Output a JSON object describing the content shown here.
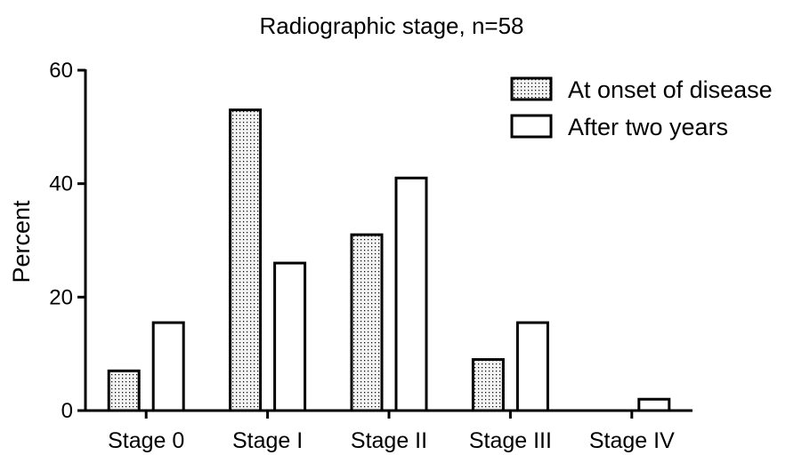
{
  "chart_data": {
    "type": "bar",
    "title": "Radiographic stage, n=58",
    "ylabel": "Percent",
    "xlabel": "",
    "ylim": [
      0,
      60
    ],
    "yticks": [
      0,
      20,
      40,
      60
    ],
    "categories": [
      "Stage 0",
      "Stage I",
      "Stage II",
      "Stage III",
      "Stage IV"
    ],
    "series": [
      {
        "name": "At onset of disease",
        "pattern": "dotted",
        "values": [
          7,
          53,
          31,
          9,
          0
        ]
      },
      {
        "name": "After two years",
        "pattern": "solid",
        "values": [
          15.5,
          26,
          41,
          15.5,
          2
        ]
      }
    ],
    "legend": "top-right",
    "grid": false,
    "colors": {
      "bar_stroke": "#000000",
      "dotted_fill_bg": "#f2f2f2",
      "dot": "#000000",
      "solid_fill": "#ffffff"
    }
  }
}
